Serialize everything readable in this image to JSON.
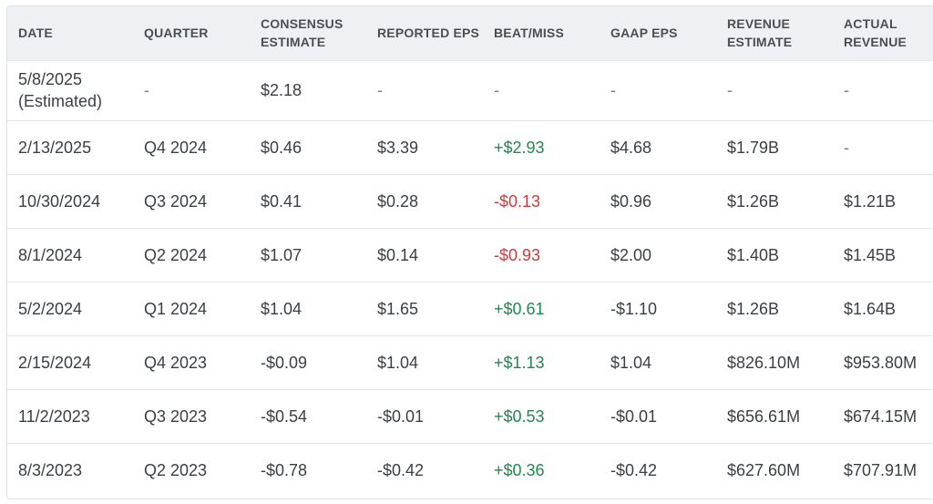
{
  "colors": {
    "header_bg": "#eef0f3",
    "beat_positive": "#1e8a4c",
    "miss_negative": "#d0393c",
    "border": "#dfe2e6"
  },
  "table": {
    "headers": [
      "DATE",
      "QUARTER",
      "CONSENSUS ESTIMATE",
      "REPORTED EPS",
      "BEAT/MISS",
      "GAAP EPS",
      "REVENUE ESTIMATE",
      "ACTUAL REVENUE"
    ],
    "rows": [
      {
        "date": "5/8/2025 (Estimated)",
        "quarter": "-",
        "consensus": "$2.18",
        "reported": "-",
        "beat_miss": "-",
        "beat_status": "none",
        "gaap": "-",
        "rev_estimate": "-",
        "actual_revenue": "-"
      },
      {
        "date": "2/13/2025",
        "quarter": "Q4 2024",
        "consensus": "$0.46",
        "reported": "$3.39",
        "beat_miss": "+$2.93",
        "beat_status": "pos",
        "gaap": "$4.68",
        "rev_estimate": "$1.79B",
        "actual_revenue": "-"
      },
      {
        "date": "10/30/2024",
        "quarter": "Q3 2024",
        "consensus": "$0.41",
        "reported": "$0.28",
        "beat_miss": "-$0.13",
        "beat_status": "neg",
        "gaap": "$0.96",
        "rev_estimate": "$1.26B",
        "actual_revenue": "$1.21B"
      },
      {
        "date": "8/1/2024",
        "quarter": "Q2 2024",
        "consensus": "$1.07",
        "reported": "$0.14",
        "beat_miss": "-$0.93",
        "beat_status": "neg",
        "gaap": "$2.00",
        "rev_estimate": "$1.40B",
        "actual_revenue": "$1.45B"
      },
      {
        "date": "5/2/2024",
        "quarter": "Q1 2024",
        "consensus": "$1.04",
        "reported": "$1.65",
        "beat_miss": "+$0.61",
        "beat_status": "pos",
        "gaap": "-$1.10",
        "rev_estimate": "$1.26B",
        "actual_revenue": "$1.64B"
      },
      {
        "date": "2/15/2024",
        "quarter": "Q4 2023",
        "consensus": "-$0.09",
        "reported": "$1.04",
        "beat_miss": "+$1.13",
        "beat_status": "pos",
        "gaap": "$1.04",
        "rev_estimate": "$826.10M",
        "actual_revenue": "$953.80M"
      },
      {
        "date": "11/2/2023",
        "quarter": "Q3 2023",
        "consensus": "-$0.54",
        "reported": "-$0.01",
        "beat_miss": "+$0.53",
        "beat_status": "pos",
        "gaap": "-$0.01",
        "rev_estimate": "$656.61M",
        "actual_revenue": "$674.15M"
      },
      {
        "date": "8/3/2023",
        "quarter": "Q2 2023",
        "consensus": "-$0.78",
        "reported": "-$0.42",
        "beat_miss": "+$0.36",
        "beat_status": "pos",
        "gaap": "-$0.42",
        "rev_estimate": "$627.60M",
        "actual_revenue": "$707.91M"
      }
    ]
  }
}
